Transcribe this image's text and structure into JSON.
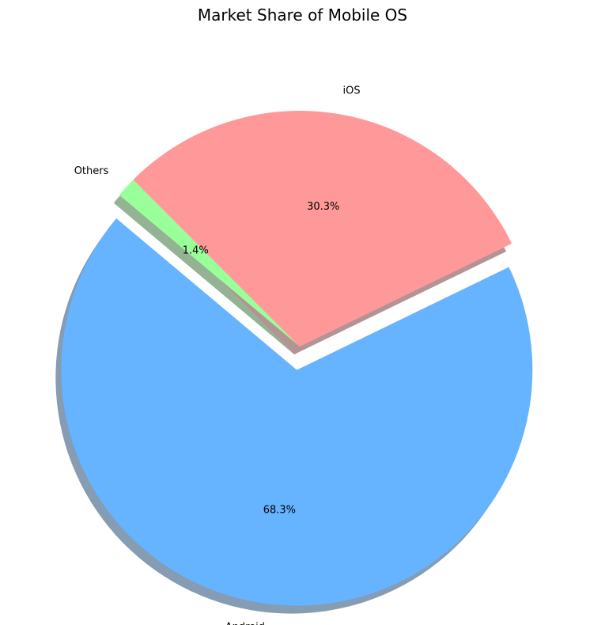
{
  "chart_data": {
    "type": "pie",
    "title": "Market Share of Mobile OS",
    "labels": [
      "Android",
      "iOS",
      "Others"
    ],
    "values": [
      68.3,
      30.3,
      1.4
    ],
    "value_labels": [
      "68.3%",
      "30.3%",
      "1.4%"
    ],
    "colors": [
      "#66b3ff",
      "#ff9999",
      "#99ff99"
    ],
    "exploded": [
      true,
      false,
      false
    ],
    "shadow": true,
    "start_angle_deg": 140
  }
}
